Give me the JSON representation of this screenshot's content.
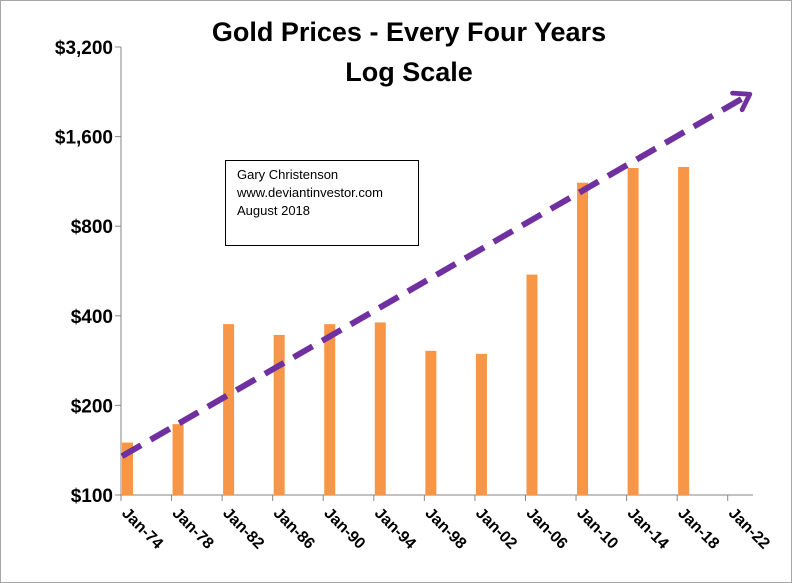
{
  "chart_data": {
    "type": "bar",
    "title": "Gold Prices - Every Four Years",
    "subtitle": "Log Scale",
    "xlabel": "",
    "ylabel": "",
    "y_scale": "log2",
    "ylim": [
      100,
      3200
    ],
    "y_ticks": [
      100,
      200,
      400,
      800,
      1600,
      3200
    ],
    "y_tick_labels": [
      "$100",
      "$200",
      "$400",
      "$800",
      "$1,600",
      "$3,200"
    ],
    "categories": [
      "Jan-74",
      "Jan-78",
      "Jan-82",
      "Jan-86",
      "Jan-90",
      "Jan-94",
      "Jan-98",
      "Jan-02",
      "Jan-06",
      "Jan-10",
      "Jan-14",
      "Jan-18",
      "Jan-22"
    ],
    "series": [
      {
        "name": "Gold Price",
        "values": [
          150,
          173,
          375,
          345,
          375,
          380,
          305,
          298,
          550,
          1120,
          1255,
          1265,
          null
        ]
      }
    ],
    "trend_line": {
      "style": "dashed-arrow",
      "start": {
        "category": "Jan-74",
        "value": 135
      },
      "end": {
        "category": "Jan-22",
        "value": 2200
      }
    },
    "annotations": [
      "Gary Christenson",
      "www.deviantinvestor.com",
      "August 2018"
    ],
    "colors": {
      "bars": "#f79646",
      "trend": "#7030a0",
      "axis": "#868686"
    }
  }
}
